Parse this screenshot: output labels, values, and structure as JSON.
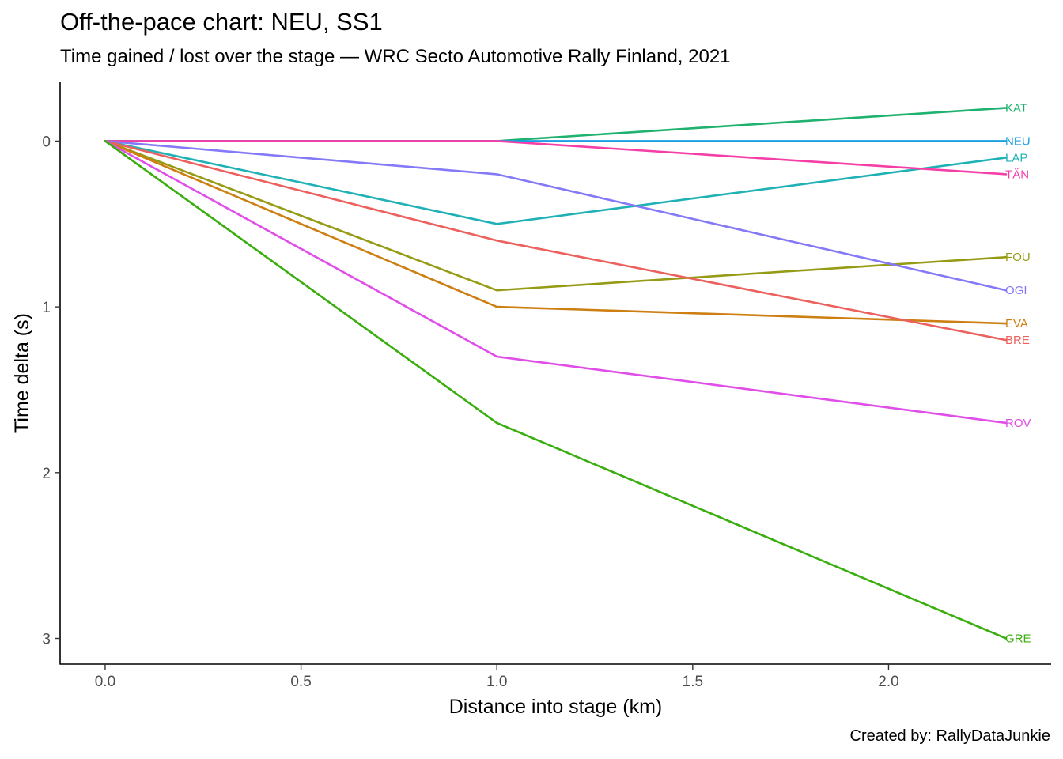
{
  "title": "Off-the-pace chart: NEU, SS1",
  "subtitle": "Time gained / lost over the stage — WRC Secto Automotive Rally Finland, 2021",
  "caption": "Created by: RallyDataJunkie",
  "chart_data": {
    "type": "line",
    "xlabel": "Distance into stage (km)",
    "ylabel": "Time delta (s)",
    "xlim": [
      -0.115,
      2.415
    ],
    "ylim": [
      -0.355,
      3.155
    ],
    "y_reversed": true,
    "x_ticks": [
      0.0,
      0.5,
      1.0,
      1.5,
      2.0
    ],
    "x_tick_labels": [
      "0.0",
      "0.5",
      "1.0",
      "1.5",
      "2.0"
    ],
    "y_ticks": [
      0,
      1,
      2,
      3
    ],
    "y_tick_labels": [
      "0",
      "1",
      "2",
      "3"
    ],
    "grid": false,
    "legend": "none (direct labels at line ends)",
    "x": [
      0,
      1.0,
      2.3
    ],
    "series": [
      {
        "name": "KAT",
        "color": "#1fb16e",
        "values": [
          0,
          0.0,
          -0.2
        ]
      },
      {
        "name": "NEU",
        "color": "#1b9ee2",
        "values": [
          0,
          0.0,
          0.0
        ]
      },
      {
        "name": "LAP",
        "color": "#1fb1b6",
        "values": [
          0,
          0.5,
          0.1
        ]
      },
      {
        "name": "TÄN",
        "color": "#f53fa7",
        "values": [
          0,
          0.0,
          0.2
        ]
      },
      {
        "name": "FOU",
        "color": "#969b14",
        "values": [
          0,
          0.9,
          0.7
        ]
      },
      {
        "name": "OGI",
        "color": "#8479f6",
        "values": [
          0,
          0.2,
          0.9
        ]
      },
      {
        "name": "EVA",
        "color": "#cd7f12",
        "values": [
          0,
          1.0,
          1.1
        ]
      },
      {
        "name": "BRE",
        "color": "#ec615e",
        "values": [
          0,
          0.6,
          1.2
        ]
      },
      {
        "name": "ROV",
        "color": "#e04de8",
        "values": [
          0,
          1.3,
          1.7
        ]
      },
      {
        "name": "GRE",
        "color": "#39ae0e",
        "values": [
          0,
          1.7,
          3.0
        ]
      }
    ]
  }
}
